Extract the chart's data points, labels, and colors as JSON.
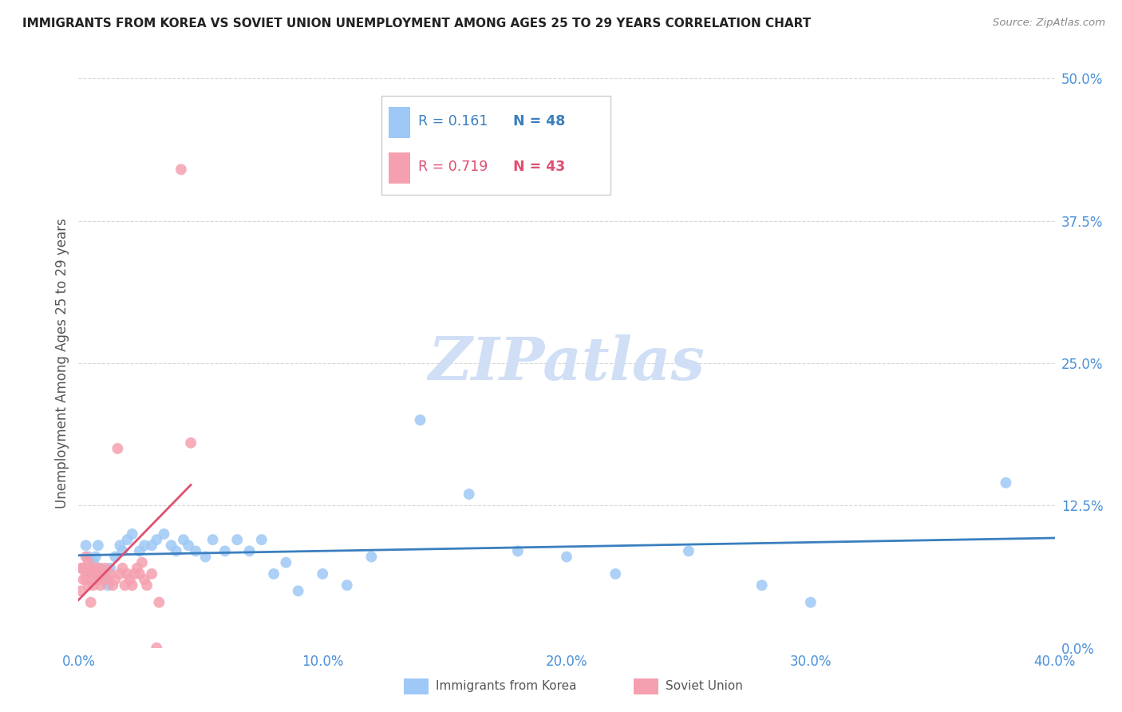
{
  "title": "IMMIGRANTS FROM KOREA VS SOVIET UNION UNEMPLOYMENT AMONG AGES 25 TO 29 YEARS CORRELATION CHART",
  "source": "Source: ZipAtlas.com",
  "ylabel": "Unemployment Among Ages 25 to 29 years",
  "xlim": [
    0.0,
    0.4
  ],
  "ylim": [
    0.0,
    0.5
  ],
  "xticks": [
    0.0,
    0.1,
    0.2,
    0.3,
    0.4
  ],
  "xtick_labels": [
    "0.0%",
    "10.0%",
    "20.0%",
    "30.0%",
    "40.0%"
  ],
  "yticks": [
    0.0,
    0.125,
    0.25,
    0.375,
    0.5
  ],
  "ytick_labels": [
    "0.0%",
    "12.5%",
    "25.0%",
    "37.5%",
    "50.0%"
  ],
  "korea_R": 0.161,
  "korea_N": 48,
  "soviet_R": 0.719,
  "soviet_N": 43,
  "korea_color": "#9ec8f5",
  "soviet_color": "#f5a0b0",
  "korea_line_color": "#3a7fbf",
  "soviet_line_color": "#e05070",
  "watermark": "ZIPatlas",
  "watermark_color": "#d0dff5",
  "background_color": "#ffffff",
  "grid_color": "#cccccc",
  "title_color": "#222222",
  "axis_label_color": "#555555",
  "tick_label_color": "#4a90d9",
  "korea_x": [
    0.002,
    0.003,
    0.004,
    0.005,
    0.006,
    0.007,
    0.008,
    0.009,
    0.01,
    0.011,
    0.012,
    0.013,
    0.015,
    0.017,
    0.018,
    0.02,
    0.022,
    0.025,
    0.027,
    0.03,
    0.032,
    0.035,
    0.038,
    0.04,
    0.043,
    0.045,
    0.048,
    0.052,
    0.055,
    0.06,
    0.065,
    0.07,
    0.075,
    0.08,
    0.085,
    0.09,
    0.1,
    0.11,
    0.12,
    0.14,
    0.16,
    0.18,
    0.2,
    0.22,
    0.25,
    0.28,
    0.3,
    0.38
  ],
  "korea_y": [
    0.07,
    0.09,
    0.08,
    0.065,
    0.075,
    0.08,
    0.09,
    0.07,
    0.065,
    0.06,
    0.055,
    0.07,
    0.08,
    0.09,
    0.085,
    0.095,
    0.1,
    0.085,
    0.09,
    0.09,
    0.095,
    0.1,
    0.09,
    0.085,
    0.095,
    0.09,
    0.085,
    0.08,
    0.095,
    0.085,
    0.095,
    0.085,
    0.095,
    0.065,
    0.075,
    0.05,
    0.065,
    0.055,
    0.08,
    0.2,
    0.135,
    0.085,
    0.08,
    0.065,
    0.085,
    0.055,
    0.04,
    0.145
  ],
  "soviet_x": [
    0.001,
    0.001,
    0.002,
    0.002,
    0.003,
    0.003,
    0.003,
    0.004,
    0.004,
    0.005,
    0.005,
    0.006,
    0.006,
    0.007,
    0.007,
    0.008,
    0.008,
    0.009,
    0.009,
    0.01,
    0.011,
    0.012,
    0.013,
    0.014,
    0.015,
    0.016,
    0.017,
    0.018,
    0.019,
    0.02,
    0.021,
    0.022,
    0.023,
    0.024,
    0.025,
    0.026,
    0.027,
    0.028,
    0.03,
    0.032,
    0.033,
    0.042,
    0.046
  ],
  "soviet_y": [
    0.07,
    0.05,
    0.07,
    0.06,
    0.08,
    0.065,
    0.06,
    0.075,
    0.055,
    0.07,
    0.04,
    0.065,
    0.055,
    0.07,
    0.06,
    0.065,
    0.07,
    0.06,
    0.055,
    0.065,
    0.07,
    0.06,
    0.065,
    0.055,
    0.06,
    0.175,
    0.065,
    0.07,
    0.055,
    0.065,
    0.06,
    0.055,
    0.065,
    0.07,
    0.065,
    0.075,
    0.06,
    0.055,
    0.065,
    0.0,
    0.04,
    0.42,
    0.18
  ]
}
